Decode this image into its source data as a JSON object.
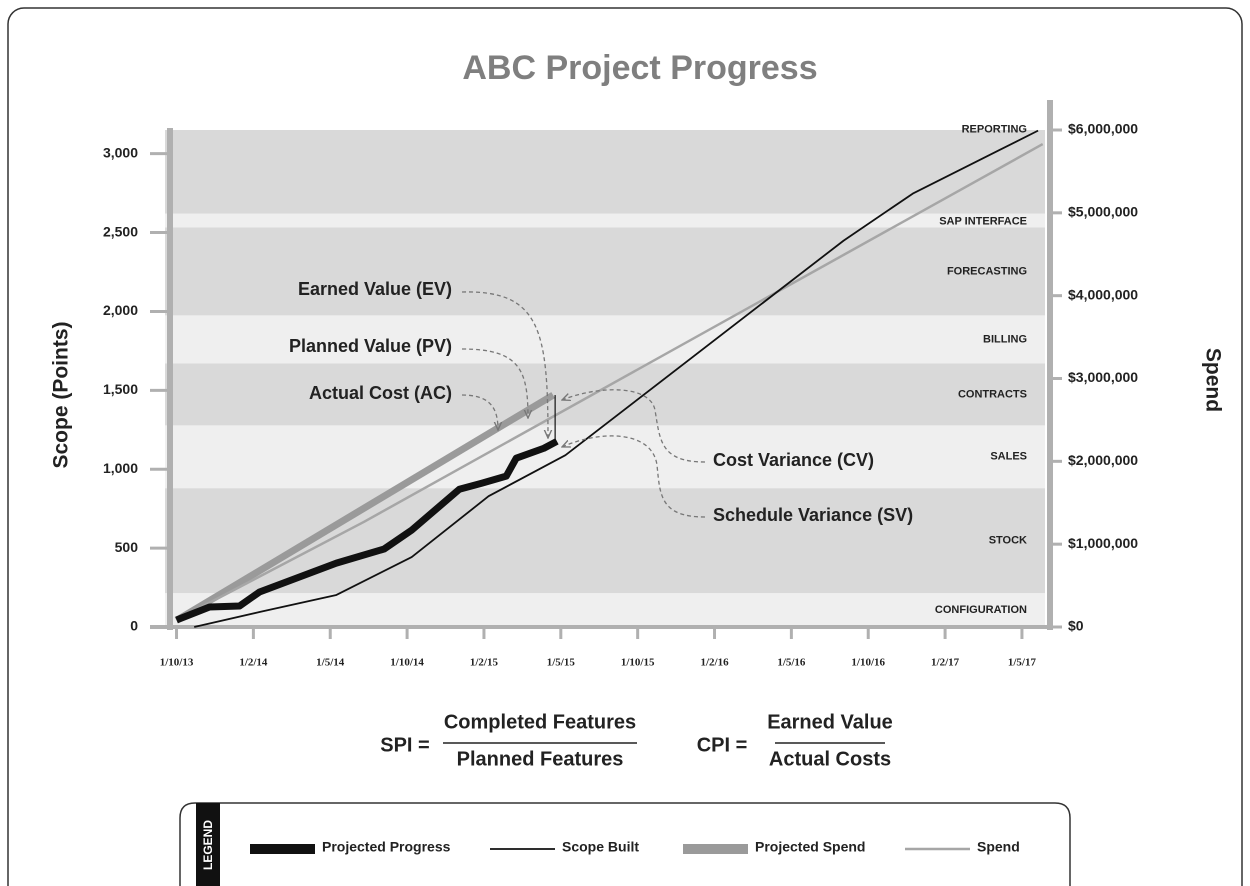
{
  "chart_data": {
    "type": "line",
    "title": "ABC Project Progress",
    "ylabel": "Scope (Points)",
    "y2label": "Spend",
    "xlim": [
      -0.15,
      11.3
    ],
    "xticks": [
      {
        "value": 0,
        "label": "1/10/13"
      },
      {
        "value": 1,
        "label": "1/2/14"
      },
      {
        "value": 2,
        "label": "1/5/14"
      },
      {
        "value": 3,
        "label": "1/10/14"
      },
      {
        "value": 4,
        "label": "1/2/15"
      },
      {
        "value": 5,
        "label": "1/5/15"
      },
      {
        "value": 6,
        "label": "1/10/15"
      },
      {
        "value": 7,
        "label": "1/2/16"
      },
      {
        "value": 8,
        "label": "1/5/16"
      },
      {
        "value": 9,
        "label": "1/10/16"
      },
      {
        "value": 10,
        "label": "1/2/17"
      },
      {
        "value": 11,
        "label": "1/5/17"
      }
    ],
    "ylim": [
      0,
      3150
    ],
    "yticks": [
      0,
      {
        "value": 500,
        "label": "500"
      },
      {
        "value": 1000,
        "label": "1,000"
      },
      {
        "value": 1500,
        "label": "1,500"
      },
      {
        "value": 2000,
        "label": "2,000"
      },
      {
        "value": 2500,
        "label": "2,500"
      },
      {
        "value": 3000,
        "label": "3,000"
      }
    ],
    "y2lim": [
      0,
      6000000
    ],
    "y2ticks": [
      {
        "value": 0,
        "label": "$0"
      },
      {
        "value": 1000000,
        "label": "$1,000,000"
      },
      {
        "value": 2000000,
        "label": "$2,000,000"
      },
      {
        "value": 3000000,
        "label": "$3,000,000"
      },
      {
        "value": 4000000,
        "label": "$4,000,000"
      },
      {
        "value": 5000000,
        "label": "$5,000,000"
      },
      {
        "value": 6000000,
        "label": "$6,000,000"
      }
    ],
    "bands": [
      {
        "label": "CONFIGURATION",
        "from": 0,
        "to": 215
      },
      {
        "label": "STOCK",
        "from": 215,
        "to": 880
      },
      {
        "label": "SALES",
        "from": 880,
        "to": 1278
      },
      {
        "label": "CONTRACTS",
        "from": 1278,
        "to": 1671
      },
      {
        "label": "BILLING",
        "from": 1671,
        "to": 1975
      },
      {
        "label": "FORECASTING",
        "from": 1975,
        "to": 2532
      },
      {
        "label": "SAP INTERFACE",
        "from": 2532,
        "to": 2620
      },
      {
        "label": "REPORTING",
        "from": 2620,
        "to": 3150
      }
    ],
    "series": [
      {
        "name": "Projected Progress",
        "color": "#111111",
        "x": [
          0,
          0.43,
          0.82,
          1.08,
          2.08,
          2.7,
          3.06,
          3.68,
          3.97,
          4.29,
          4.42,
          4.78,
          4.95
        ],
        "values": [
          44,
          127,
          133,
          222,
          405,
          494,
          614,
          873,
          911,
          956,
          1070,
          1133,
          1177
        ]
      },
      {
        "name": "Scope Built",
        "color": "#111111",
        "x": [
          0.23,
          1.08,
          2.08,
          3.06,
          4.06,
          5.06,
          8.68,
          9.58,
          10.69,
          11.21
        ],
        "values": [
          0,
          95,
          203,
          443,
          829,
          1089,
          2449,
          2747,
          3019,
          3146
        ]
      },
      {
        "name": "Projected Spend",
        "color": "#9a9a9a",
        "axis": "y2",
        "x": [
          0,
          4.9
        ],
        "values": [
          80000,
          2800000
        ]
      },
      {
        "name": "Spend",
        "color": "#a6a6a6",
        "axis": "y2",
        "x": [
          0,
          2.44,
          11.27
        ],
        "values": [
          84000,
          1270000,
          5830000
        ]
      }
    ],
    "annotations": [
      "Earned Value (EV)",
      "Planned Value (PV)",
      "Actual Cost (AC)",
      "Cost Variance (CV)",
      "Schedule Variance (SV)"
    ],
    "formulas": [
      {
        "label": "SPI =",
        "numerator": "Completed Features",
        "denominator": "Planned Features"
      },
      {
        "label": "CPI =",
        "numerator": "Earned Value",
        "denominator": "Actual Costs"
      }
    ],
    "legend_title": "LEGEND"
  }
}
